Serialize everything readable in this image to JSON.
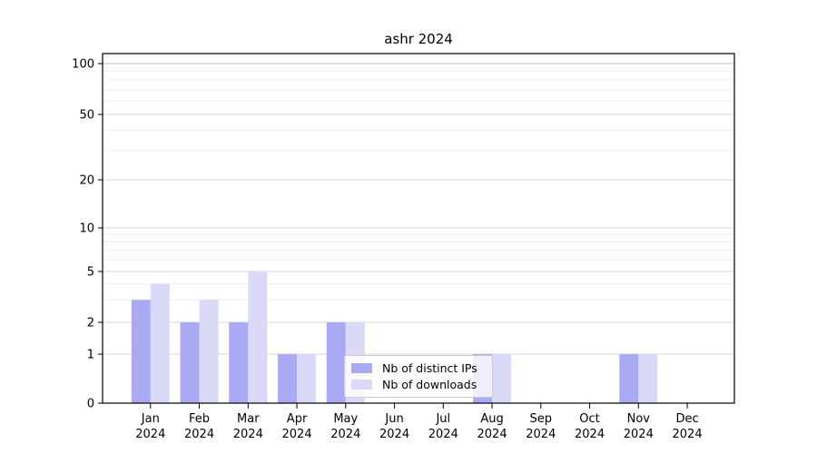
{
  "chart_data": {
    "type": "bar",
    "title": "ashr 2024",
    "categories": [
      "Jan",
      "Feb",
      "Mar",
      "Apr",
      "May",
      "Jun",
      "Jul",
      "Aug",
      "Sep",
      "Oct",
      "Nov",
      "Dec"
    ],
    "category_year_line": "2024",
    "series": [
      {
        "name": "Nb of distinct IPs",
        "color": "#a9a9f4",
        "values": [
          3,
          2,
          2,
          1,
          2,
          0,
          0,
          1,
          0,
          0,
          1,
          0
        ]
      },
      {
        "name": "Nb of downloads",
        "color": "#dadaf8",
        "values": [
          4,
          3,
          5,
          1,
          2,
          0,
          0,
          1,
          0,
          0,
          1,
          0
        ]
      }
    ],
    "xlabel": "",
    "ylabel": "",
    "yscale": "asinh-log",
    "ylim": [
      0,
      100
    ],
    "yticks": [
      0,
      1,
      2,
      5,
      10,
      20,
      50,
      100
    ],
    "minor_gridlines": [
      3,
      4,
      6,
      7,
      8,
      9,
      30,
      40,
      60,
      70,
      80,
      90
    ],
    "grid": "horizontal",
    "legend_position": "lower-center",
    "colors": {
      "axis": "#000000",
      "major_grid": "#d9d9d9",
      "top_grid": "#c0c0c0",
      "minor_grid": "#efefef",
      "background": "#ffffff"
    }
  }
}
